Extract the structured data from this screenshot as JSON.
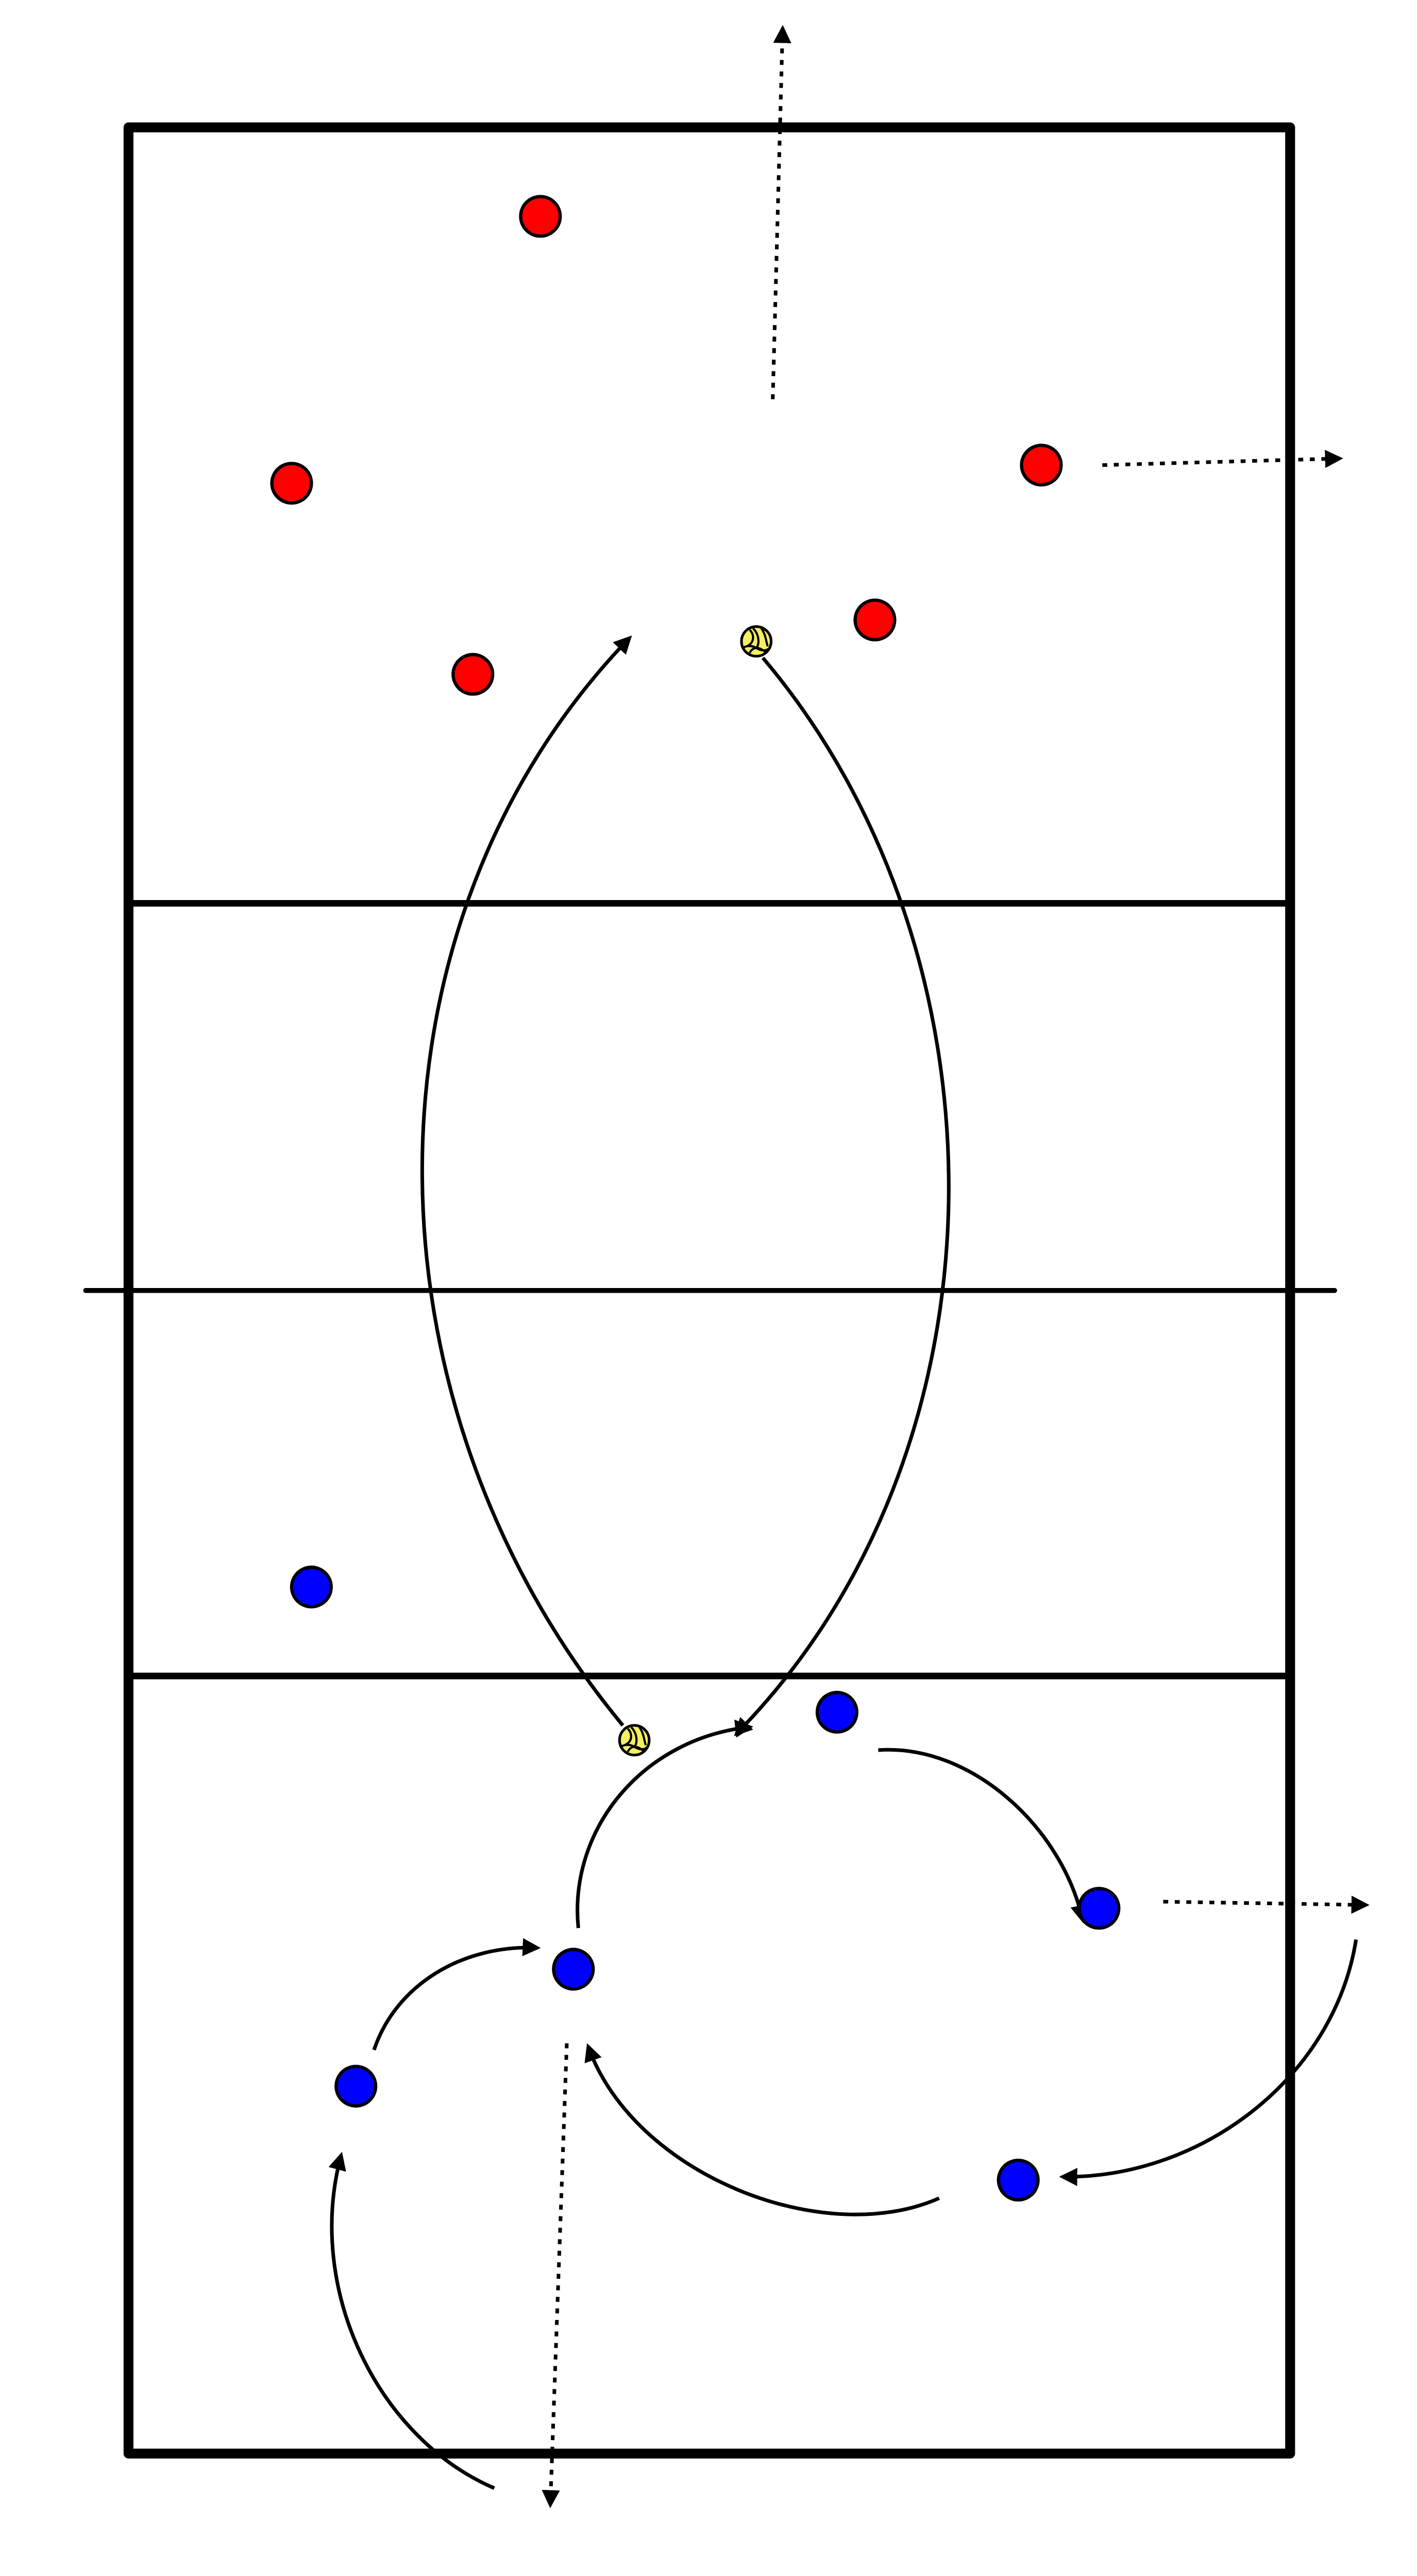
{
  "diagram": {
    "type": "volleyball-drill",
    "colors": {
      "court_lines": "#000000",
      "team_a": "#ff0000",
      "team_b": "#0000ff",
      "ball": "#f5f060",
      "background": "#ffffff"
    },
    "legend": {
      "solid_arrow": "ball-path",
      "dotted_arrow": "player-movement"
    },
    "icons": [
      "volleyball-icon",
      "player-marker"
    ]
  }
}
